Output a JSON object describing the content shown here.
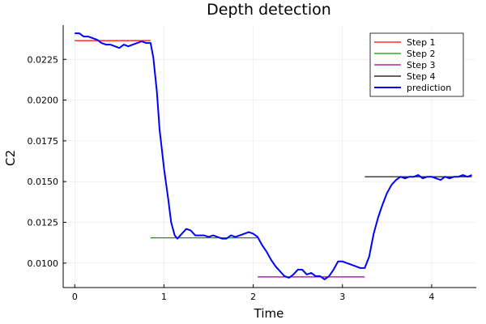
{
  "chart_data": {
    "type": "line",
    "title": "Depth detection",
    "xlabel": "Time",
    "ylabel": "C2",
    "xlim": [
      -0.13,
      4.5
    ],
    "ylim": [
      0.0085,
      0.0246
    ],
    "xticks": [
      0,
      1,
      2,
      3,
      4
    ],
    "xtick_labels": [
      "0",
      "1",
      "2",
      "3",
      "4"
    ],
    "yticks": [
      0.01,
      0.0125,
      0.015,
      0.0175,
      0.02,
      0.0225
    ],
    "ytick_labels": [
      "0.0100",
      "0.0125",
      "0.0150",
      "0.0175",
      "0.0200",
      "0.0225"
    ],
    "grid": true,
    "legend_position": "top-right",
    "series": [
      {
        "name": "Step 1",
        "color": "#ff0000",
        "x": [
          0.0,
          0.85
        ],
        "y": [
          0.02365,
          0.02365
        ]
      },
      {
        "name": "Step 2",
        "color": "#00a000",
        "x": [
          0.85,
          2.05
        ],
        "y": [
          0.01155,
          0.01155
        ]
      },
      {
        "name": "Step 3",
        "color": "#990099",
        "x": [
          2.05,
          3.25
        ],
        "y": [
          0.00915,
          0.00915
        ]
      },
      {
        "name": "Step 4",
        "color": "#000000",
        "x": [
          3.25,
          4.45
        ],
        "y": [
          0.0153,
          0.0153
        ]
      },
      {
        "name": "prediction",
        "color": "#0000ff",
        "x": [
          0.0,
          0.05,
          0.1,
          0.15,
          0.2,
          0.25,
          0.3,
          0.35,
          0.4,
          0.45,
          0.5,
          0.55,
          0.6,
          0.65,
          0.7,
          0.75,
          0.8,
          0.85,
          0.88,
          0.92,
          0.95,
          1.0,
          1.05,
          1.08,
          1.12,
          1.15,
          1.2,
          1.25,
          1.3,
          1.35,
          1.4,
          1.45,
          1.5,
          1.55,
          1.6,
          1.65,
          1.7,
          1.75,
          1.8,
          1.85,
          1.9,
          1.95,
          2.0,
          2.05,
          2.1,
          2.15,
          2.2,
          2.25,
          2.3,
          2.35,
          2.4,
          2.45,
          2.5,
          2.55,
          2.6,
          2.65,
          2.7,
          2.75,
          2.8,
          2.85,
          2.9,
          2.95,
          3.0,
          3.05,
          3.1,
          3.15,
          3.2,
          3.25,
          3.3,
          3.35,
          3.4,
          3.45,
          3.5,
          3.55,
          3.6,
          3.65,
          3.7,
          3.75,
          3.8,
          3.85,
          3.9,
          3.95,
          4.0,
          4.05,
          4.1,
          4.15,
          4.2,
          4.25,
          4.3,
          4.35,
          4.4,
          4.45
        ],
        "y": [
          0.0241,
          0.0241,
          0.0239,
          0.0239,
          0.0238,
          0.0237,
          0.0235,
          0.0234,
          0.0234,
          0.0233,
          0.0232,
          0.0234,
          0.0233,
          0.0234,
          0.0235,
          0.0236,
          0.0235,
          0.0235,
          0.0226,
          0.0205,
          0.0182,
          0.0158,
          0.0138,
          0.0125,
          0.0117,
          0.0115,
          0.0118,
          0.0121,
          0.012,
          0.0117,
          0.0117,
          0.0117,
          0.0116,
          0.0117,
          0.0116,
          0.0115,
          0.0115,
          0.0117,
          0.0116,
          0.0117,
          0.0118,
          0.0119,
          0.0118,
          0.0116,
          0.0111,
          0.0107,
          0.0102,
          0.0098,
          0.0095,
          0.0092,
          0.0091,
          0.0093,
          0.0096,
          0.0096,
          0.0093,
          0.0094,
          0.0092,
          0.0092,
          0.009,
          0.0092,
          0.0096,
          0.0101,
          0.0101,
          0.01,
          0.0099,
          0.0098,
          0.0097,
          0.0097,
          0.0104,
          0.0118,
          0.0128,
          0.0136,
          0.0143,
          0.0148,
          0.0151,
          0.0153,
          0.0152,
          0.0153,
          0.0153,
          0.0154,
          0.0152,
          0.0153,
          0.0153,
          0.0152,
          0.0151,
          0.0153,
          0.0152,
          0.0153,
          0.0153,
          0.0154,
          0.0153,
          0.0154
        ]
      }
    ]
  }
}
